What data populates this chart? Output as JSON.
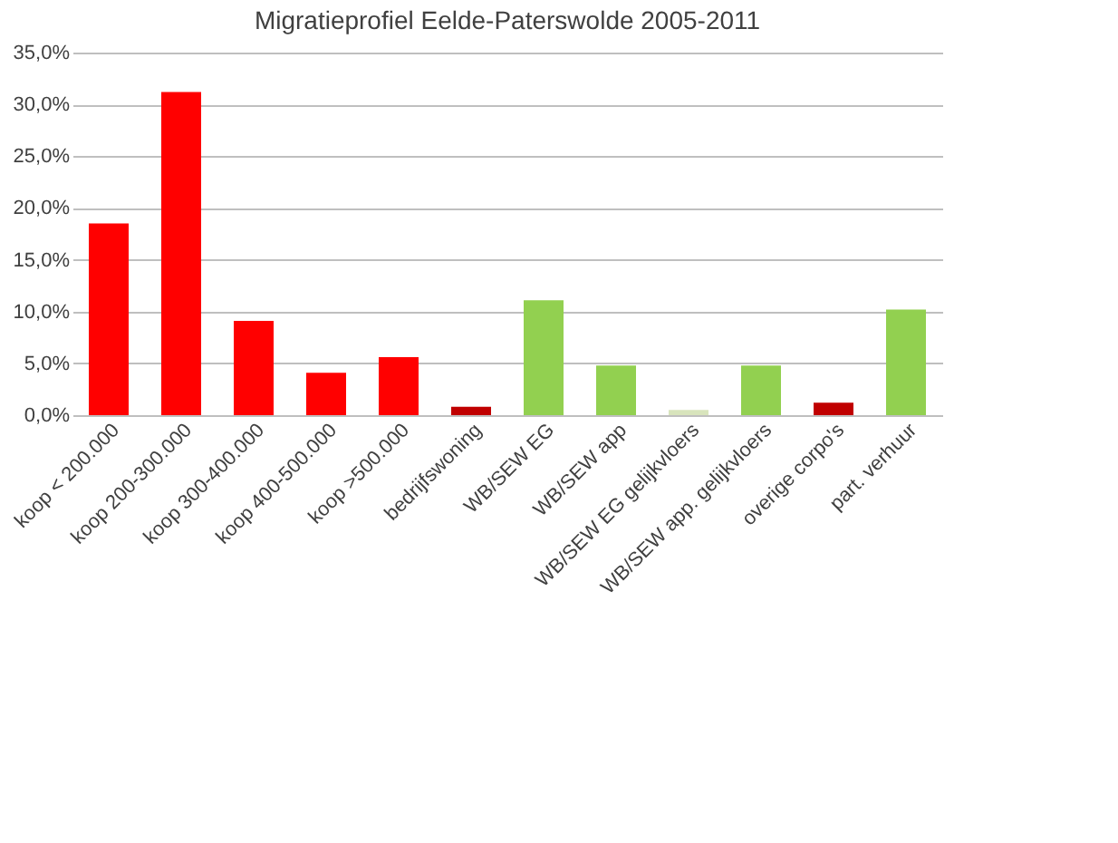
{
  "chart_data": {
    "type": "bar",
    "title": "Migratieprofiel Eelde-Paterswolde 2005-2011",
    "categories": [
      "koop < 200.000",
      "koop 200-300.000",
      "koop 300-400.000",
      "koop 400-500.000",
      "koop >500.000",
      "bedrijfswoning",
      "WB/SEW EG",
      "WB/SEW app",
      "WB/SEW EG gelijkvloers",
      "WB/SEW app. gelijkvloers",
      "overige corpo's",
      "part. verhuur"
    ],
    "values": [
      18.5,
      31.2,
      9.1,
      4.1,
      5.6,
      0.8,
      11.1,
      4.8,
      0.5,
      4.8,
      1.2,
      10.2
    ],
    "colors": [
      "#ff0000",
      "#ff0000",
      "#ff0000",
      "#ff0000",
      "#ff0000",
      "#c00000",
      "#92d050",
      "#92d050",
      "#d8e4bc",
      "#92d050",
      "#c00000",
      "#92d050"
    ],
    "ylim": [
      0,
      35
    ],
    "yticks": [
      {
        "value": 0,
        "label": "0,0%"
      },
      {
        "value": 5,
        "label": "5,0%"
      },
      {
        "value": 10,
        "label": "10,0%"
      },
      {
        "value": 15,
        "label": "15,0%"
      },
      {
        "value": 20,
        "label": "20,0%"
      },
      {
        "value": 25,
        "label": "25,0%"
      },
      {
        "value": 30,
        "label": "30,0%"
      },
      {
        "value": 35,
        "label": "35,0%"
      }
    ],
    "grid": "y"
  }
}
